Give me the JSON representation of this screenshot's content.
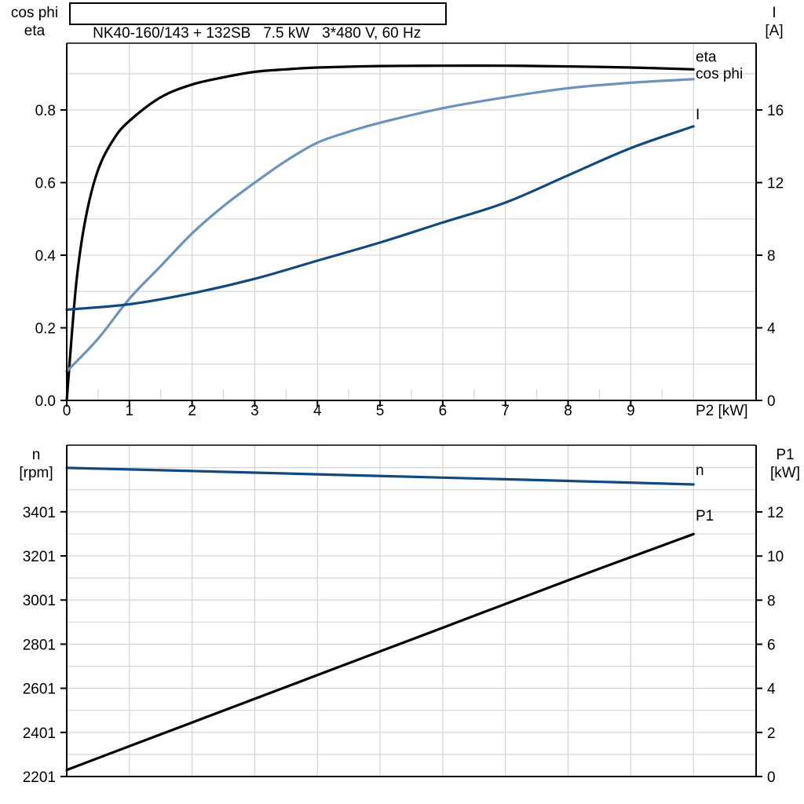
{
  "title": "NK40-160/143 + 132SB   7.5 kW   3*480 V, 60 Hz",
  "colors": {
    "black": "#000000",
    "dark_blue": "#124a80",
    "light_blue": "#6e93bb",
    "grid": "#d4d4d4",
    "axis": "#000000",
    "background": "#ffffff"
  },
  "chart_data": [
    {
      "id": "efficiency-current-chart",
      "type": "line",
      "xlabel": "P2 [kW]",
      "xlim": [
        0,
        11
      ],
      "x_ticks": [
        {
          "v": 0,
          "t": "0"
        },
        {
          "v": 1,
          "t": "1"
        },
        {
          "v": 2,
          "t": "2"
        },
        {
          "v": 3,
          "t": "3"
        },
        {
          "v": 4,
          "t": "4"
        },
        {
          "v": 5,
          "t": "5"
        },
        {
          "v": 6,
          "t": "6"
        },
        {
          "v": 7,
          "t": "7"
        },
        {
          "v": 8,
          "t": "8"
        },
        {
          "v": 9,
          "t": "9"
        }
      ],
      "x_minor_ticks": [
        0.5,
        1.5,
        2.5,
        3.5,
        4.5,
        5.5,
        6.5,
        7.5,
        8.5,
        9.5
      ],
      "grid_v": [
        1,
        2,
        3,
        4,
        5,
        6,
        7,
        8,
        9,
        10
      ],
      "grid_h_left": [
        0.1,
        0.2,
        0.3,
        0.4,
        0.5,
        0.6,
        0.7,
        0.8,
        0.9
      ],
      "left_axis": {
        "title_lines": [
          "cos phi",
          "eta"
        ],
        "range": [
          0,
          0.984
        ],
        "ticks": [
          {
            "v": 0,
            "t": "0.0"
          },
          {
            "v": 0.2,
            "t": "0.2"
          },
          {
            "v": 0.4,
            "t": "0.4"
          },
          {
            "v": 0.6,
            "t": "0.6"
          },
          {
            "v": 0.8,
            "t": "0.8"
          }
        ]
      },
      "right_axis": {
        "title_lines": [
          "I",
          "[A]"
        ],
        "range": [
          0,
          19.68
        ],
        "ticks": [
          {
            "v": 0,
            "t": "0"
          },
          {
            "v": 4,
            "t": "4"
          },
          {
            "v": 8,
            "t": "8"
          },
          {
            "v": 12,
            "t": "12"
          },
          {
            "v": 16,
            "t": "16"
          }
        ]
      },
      "series": [
        {
          "name": "eta",
          "axis": "left",
          "color": "black",
          "points": [
            [
              0,
              0
            ],
            [
              0.15,
              0.32
            ],
            [
              0.3,
              0.5
            ],
            [
              0.5,
              0.635
            ],
            [
              0.75,
              0.72
            ],
            [
              1,
              0.77
            ],
            [
              1.5,
              0.835
            ],
            [
              2,
              0.87
            ],
            [
              2.5,
              0.89
            ],
            [
              3,
              0.905
            ],
            [
              3.5,
              0.912
            ],
            [
              4,
              0.917
            ],
            [
              5,
              0.921
            ],
            [
              6,
              0.922
            ],
            [
              7,
              0.922
            ],
            [
              8,
              0.92
            ],
            [
              9,
              0.917
            ],
            [
              10,
              0.912
            ]
          ]
        },
        {
          "name": "cos phi",
          "axis": "left",
          "color": "light_blue",
          "points": [
            [
              0,
              0.08
            ],
            [
              0.5,
              0.17
            ],
            [
              1,
              0.28
            ],
            [
              1.5,
              0.37
            ],
            [
              2,
              0.46
            ],
            [
              2.5,
              0.535
            ],
            [
              3,
              0.6
            ],
            [
              3.5,
              0.66
            ],
            [
              4,
              0.71
            ],
            [
              4.5,
              0.74
            ],
            [
              5,
              0.765
            ],
            [
              6,
              0.805
            ],
            [
              7,
              0.835
            ],
            [
              8,
              0.86
            ],
            [
              9,
              0.875
            ],
            [
              10,
              0.885
            ]
          ]
        },
        {
          "name": "I",
          "axis": "right",
          "color": "dark_blue",
          "points": [
            [
              0,
              5
            ],
            [
              1,
              5.3
            ],
            [
              2,
              5.9
            ],
            [
              3,
              6.7
            ],
            [
              4,
              7.7
            ],
            [
              5,
              8.7
            ],
            [
              6,
              9.8
            ],
            [
              7,
              10.9
            ],
            [
              8,
              12.4
            ],
            [
              9,
              13.9
            ],
            [
              10,
              15.1
            ]
          ]
        }
      ]
    },
    {
      "id": "speed-power-chart",
      "type": "line",
      "xlabel": "",
      "xlim": [
        0,
        11
      ],
      "x_ticks": [],
      "x_minor_ticks": [],
      "grid_v": [
        1,
        2,
        3,
        4,
        5,
        6,
        7,
        8,
        9,
        10
      ],
      "grid_h_left": [
        2301,
        2401,
        2501,
        2601,
        2701,
        2801,
        2901,
        3001,
        3101,
        3201,
        3301,
        3401,
        3501,
        3601
      ],
      "left_axis": {
        "title_lines": [
          "n",
          "[rpm]"
        ],
        "range": [
          2201,
          3703
        ],
        "ticks": [
          {
            "v": 2201,
            "t": "2201"
          },
          {
            "v": 2401,
            "t": "2401"
          },
          {
            "v": 2601,
            "t": "2601"
          },
          {
            "v": 2801,
            "t": "2801"
          },
          {
            "v": 3001,
            "t": "3001"
          },
          {
            "v": 3201,
            "t": "3201"
          },
          {
            "v": 3401,
            "t": "3401"
          }
        ]
      },
      "right_axis": {
        "title_lines": [
          "P1",
          "[kW]"
        ],
        "range": [
          0,
          15.03
        ],
        "ticks": [
          {
            "v": 0,
            "t": "0"
          },
          {
            "v": 2,
            "t": "2"
          },
          {
            "v": 4,
            "t": "4"
          },
          {
            "v": 6,
            "t": "6"
          },
          {
            "v": 8,
            "t": "8"
          },
          {
            "v": 10,
            "t": "10"
          },
          {
            "v": 12,
            "t": "12"
          }
        ]
      },
      "series": [
        {
          "name": "n",
          "axis": "left",
          "color": "dark_blue",
          "points": [
            [
              0,
              3600
            ],
            [
              2,
              3586
            ],
            [
              4,
              3571
            ],
            [
              6,
              3556
            ],
            [
              8,
              3541
            ],
            [
              10,
              3525
            ]
          ]
        },
        {
          "name": "P1",
          "axis": "right",
          "color": "black",
          "points": [
            [
              0,
              0.3
            ],
            [
              2,
              2.45
            ],
            [
              4,
              4.6
            ],
            [
              6,
              6.75
            ],
            [
              8,
              8.9
            ],
            [
              10,
              11
            ]
          ]
        }
      ]
    }
  ]
}
